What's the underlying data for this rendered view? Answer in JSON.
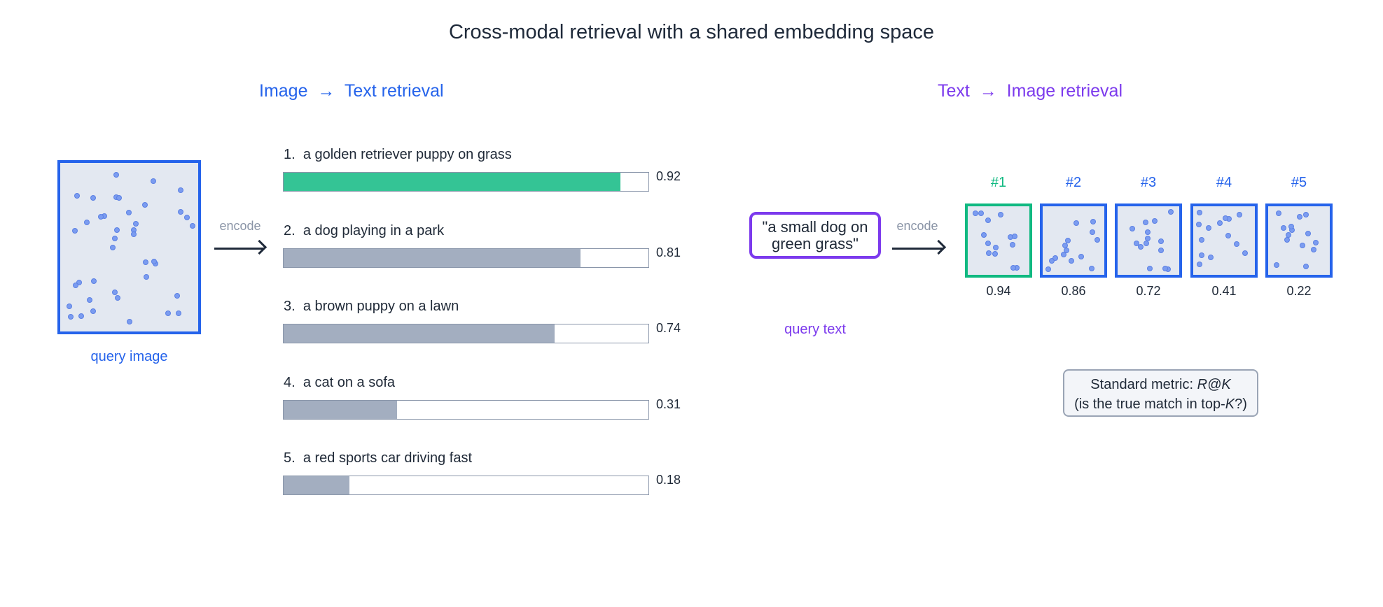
{
  "title": "Cross-modal retrieval with a shared embedding space",
  "left_section": {
    "title_from": "Image",
    "arrow": "→",
    "title_to": "Text retrieval",
    "query_caption": "query image",
    "encode_label": "encode",
    "results": [
      {
        "rank": "1.",
        "text": "a golden retriever puppy on grass",
        "score": 0.92,
        "score_label": "0.92",
        "highlight": true
      },
      {
        "rank": "2.",
        "text": "a dog playing in a park",
        "score": 0.81,
        "score_label": "0.81",
        "highlight": false
      },
      {
        "rank": "3.",
        "text": "a brown puppy on a lawn",
        "score": 0.74,
        "score_label": "0.74",
        "highlight": false
      },
      {
        "rank": "4.",
        "text": "a cat on a sofa",
        "score": 0.31,
        "score_label": "0.31",
        "highlight": false
      },
      {
        "rank": "5.",
        "text": "a red sports car driving fast",
        "score": 0.18,
        "score_label": "0.18",
        "highlight": false
      }
    ]
  },
  "right_section": {
    "title_from": "Text",
    "arrow": "→",
    "title_to": "Image retrieval",
    "query_text": "\"a small dog on green grass\"",
    "query_caption": "query text",
    "encode_label": "encode",
    "results": [
      {
        "rank": "#1",
        "score_label": "0.94",
        "highlight": true
      },
      {
        "rank": "#2",
        "score_label": "0.86",
        "highlight": false
      },
      {
        "rank": "#3",
        "score_label": "0.72",
        "highlight": false
      },
      {
        "rank": "#4",
        "score_label": "0.41",
        "highlight": false
      },
      {
        "rank": "#5",
        "score_label": "0.22",
        "highlight": false
      }
    ],
    "metric_line1_prefix": "Standard metric: ",
    "metric_line1_em": "R@K",
    "metric_line2_prefix": "(is the true match in top-",
    "metric_line2_em": "K",
    "metric_line2_suffix": "?)"
  },
  "colors": {
    "image_accent": "#2563eb",
    "text_accent": "#7c3aed",
    "best_match": "#34c495",
    "other_match": "#a3aec0"
  }
}
